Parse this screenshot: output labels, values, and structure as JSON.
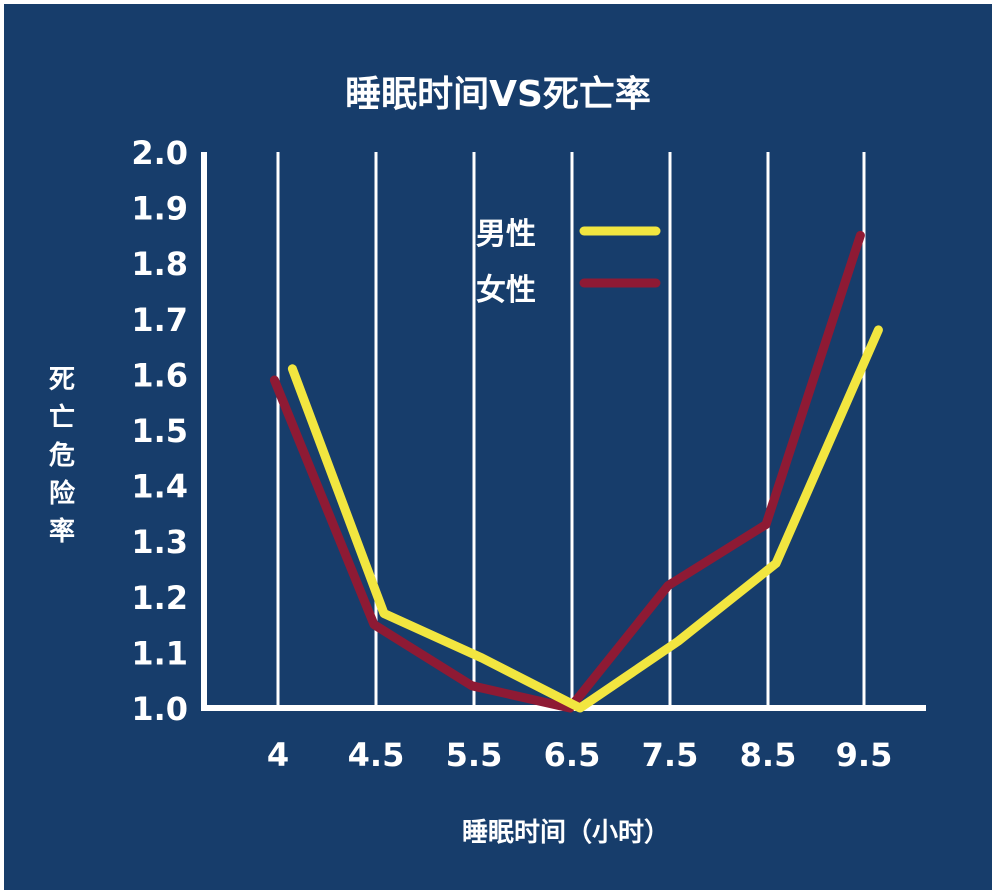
{
  "chart_data": {
    "type": "line",
    "title": "睡眠时间VS死亡率",
    "xlabel": "睡眠时间（小时）",
    "ylabel": "死亡危险率",
    "categories": [
      "4",
      "4.5",
      "5.5",
      "6.5",
      "7.5",
      "8.5",
      "9.5"
    ],
    "y_ticks": [
      "1.0",
      "1.1",
      "1.2",
      "1.3",
      "1.4",
      "1.5",
      "1.6",
      "1.7",
      "1.8",
      "1.9",
      "2.0"
    ],
    "ylim": [
      1.0,
      2.0
    ],
    "grid": "vertical",
    "legend_position": "top-center",
    "series": [
      {
        "name": "男性",
        "color": "#f2e640",
        "values": [
          1.61,
          1.17,
          1.09,
          1.0,
          1.12,
          1.26,
          1.68
        ]
      },
      {
        "name": "女性",
        "color": "#8e1a34",
        "values": [
          1.59,
          1.15,
          1.04,
          1.0,
          1.22,
          1.33,
          1.85
        ]
      }
    ]
  }
}
